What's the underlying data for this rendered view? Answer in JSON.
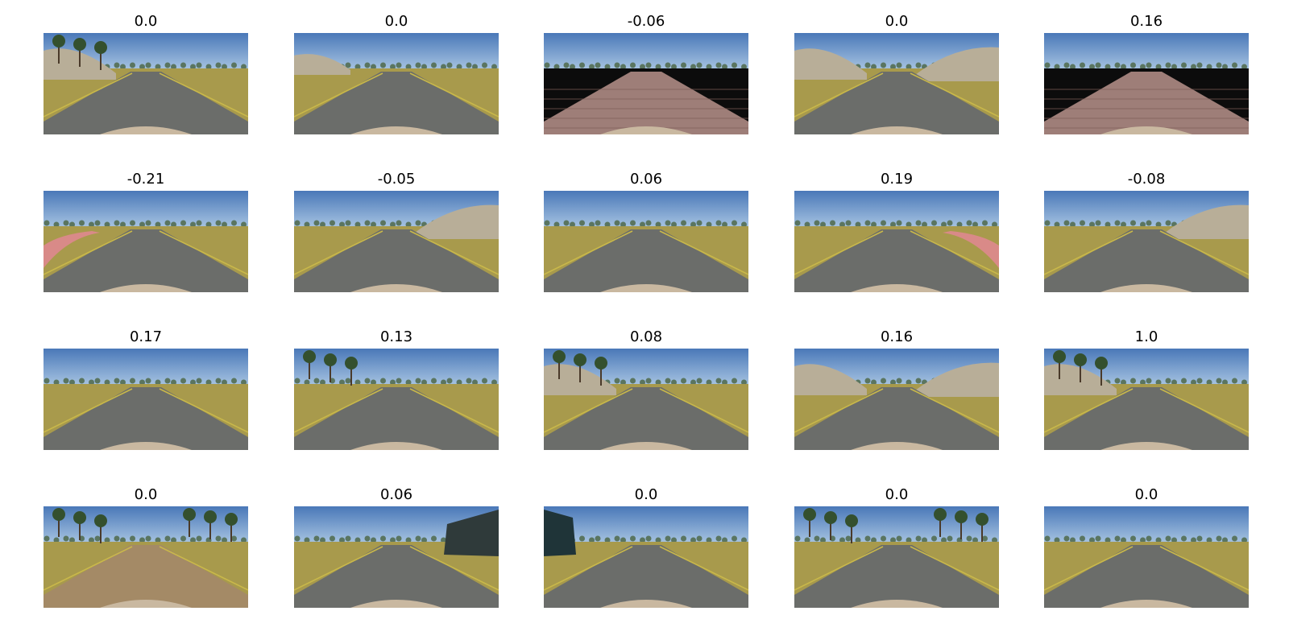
{
  "figure": {
    "rows": 4,
    "cols": 5,
    "frames": [
      {
        "label": "0.0",
        "road": "asphalt",
        "scene": "hill-left"
      },
      {
        "label": "0.0",
        "road": "asphalt",
        "scene": "rocks-left"
      },
      {
        "label": "-0.06",
        "road": "cobble",
        "scene": "dark-edges"
      },
      {
        "label": "0.0",
        "road": "asphalt",
        "scene": "hills-both"
      },
      {
        "label": "0.16",
        "road": "cobble",
        "scene": "dark-edges"
      },
      {
        "label": "-0.21",
        "road": "asphalt",
        "scene": "curb-left"
      },
      {
        "label": "-0.05",
        "road": "asphalt",
        "scene": "hill-right"
      },
      {
        "label": "0.06",
        "road": "asphalt",
        "scene": "open"
      },
      {
        "label": "0.19",
        "road": "asphalt",
        "scene": "curb-right"
      },
      {
        "label": "-0.08",
        "road": "asphalt",
        "scene": "hill-right"
      },
      {
        "label": "0.17",
        "road": "asphalt",
        "scene": "open"
      },
      {
        "label": "0.13",
        "road": "asphalt",
        "scene": "trees-left"
      },
      {
        "label": "0.08",
        "road": "asphalt",
        "scene": "hill-left"
      },
      {
        "label": "0.16",
        "road": "asphalt",
        "scene": "hills-both"
      },
      {
        "label": "1.0",
        "road": "asphalt",
        "scene": "hill-left"
      },
      {
        "label": "0.0",
        "road": "dirt",
        "scene": "trees-both"
      },
      {
        "label": "0.06",
        "road": "asphalt",
        "scene": "wall-right"
      },
      {
        "label": "0.0",
        "road": "asphalt",
        "scene": "wall-left"
      },
      {
        "label": "0.0",
        "road": "asphalt",
        "scene": "trees-both"
      },
      {
        "label": "0.0",
        "road": "asphalt",
        "scene": "open"
      }
    ]
  },
  "colors": {
    "sky_top": "#4a78b8",
    "sky_bottom": "#b9d3ea",
    "grass": "#a89a4c",
    "asphalt": "#6b6d6a",
    "cobble": "#9e7e78",
    "dirt": "#a48a66",
    "lane_line": "#c9b84a",
    "hood": "#c9b8a0",
    "tree": "#34502e",
    "rock": "#b8ae98"
  }
}
